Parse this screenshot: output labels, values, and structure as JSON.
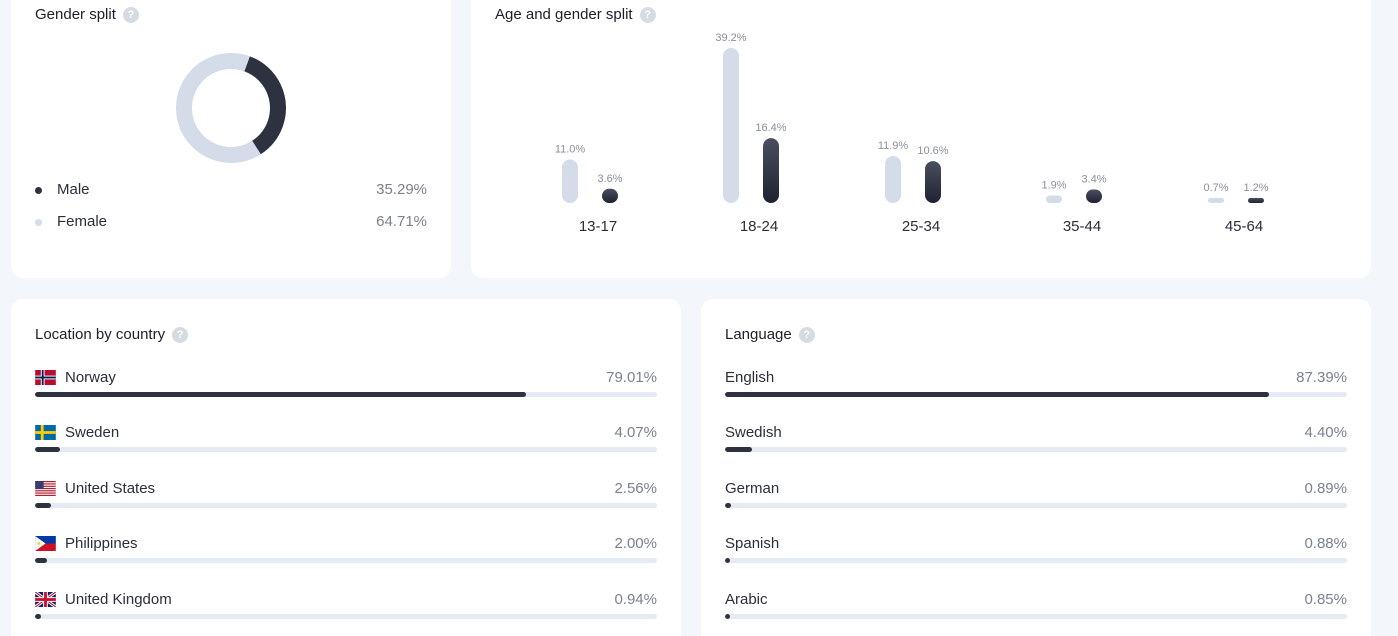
{
  "gender": {
    "title": "Gender split",
    "help": "?",
    "items": [
      {
        "label": "Male",
        "value": "35.29%",
        "color": "#2e3140"
      },
      {
        "label": "Female",
        "value": "64.71%",
        "color": "#d4dbe9"
      }
    ]
  },
  "age": {
    "title": "Age and gender split",
    "help": "?"
  },
  "country": {
    "title": "Location by country",
    "help": "?",
    "items": [
      {
        "label": "Norway",
        "value": "79.01%",
        "flag": "no-flag-icon",
        "fraction": 0.7901
      },
      {
        "label": "Sweden",
        "value": "4.07%",
        "flag": "se-flag-icon",
        "fraction": 0.0407
      },
      {
        "label": "United States",
        "value": "2.56%",
        "flag": "us-flag-icon",
        "fraction": 0.0256
      },
      {
        "label": "Philippines",
        "value": "2.00%",
        "flag": "ph-flag-icon",
        "fraction": 0.02
      },
      {
        "label": "United Kingdom",
        "value": "0.94%",
        "flag": "gb-flag-icon",
        "fraction": 0.0094
      }
    ]
  },
  "language": {
    "title": "Language",
    "help": "?",
    "items": [
      {
        "label": "English",
        "value": "87.39%",
        "fraction": 0.8739
      },
      {
        "label": "Swedish",
        "value": "4.40%",
        "fraction": 0.044
      },
      {
        "label": "German",
        "value": "0.89%",
        "fraction": 0.0089
      },
      {
        "label": "Spanish",
        "value": "0.88%",
        "fraction": 0.0088
      },
      {
        "label": "Arabic",
        "value": "0.85%",
        "fraction": 0.0085
      }
    ]
  },
  "chart_data": [
    {
      "type": "pie",
      "title": "Gender split",
      "categories": [
        "Male",
        "Female"
      ],
      "values": [
        35.29,
        64.71
      ],
      "colors": [
        "#2e3140",
        "#d4dbe9"
      ]
    },
    {
      "type": "bar",
      "title": "Age and gender split",
      "categories": [
        "13-17",
        "18-24",
        "25-34",
        "35-44",
        "45-64"
      ],
      "series": [
        {
          "values": [
            11.0,
            39.2,
            11.9,
            1.9,
            0.7
          ],
          "labels": [
            "11.0%",
            "39.2%",
            "11.9%",
            "1.9%",
            "0.7%"
          ],
          "color": "#d4dbe9"
        },
        {
          "values": [
            3.6,
            16.4,
            10.6,
            3.4,
            1.2
          ],
          "labels": [
            "3.6%",
            "16.4%",
            "10.6%",
            "3.4%",
            "1.2%"
          ],
          "color": "#2e3140"
        }
      ],
      "ylim": [
        0,
        39.2
      ],
      "grid": false
    },
    {
      "type": "bar",
      "title": "Location by country",
      "categories": [
        "Norway",
        "Sweden",
        "United States",
        "Philippines",
        "United Kingdom"
      ],
      "values": [
        79.01,
        4.07,
        2.56,
        2.0,
        0.94
      ]
    },
    {
      "type": "bar",
      "title": "Language",
      "categories": [
        "English",
        "Swedish",
        "German",
        "Spanish",
        "Arabic"
      ],
      "values": [
        87.39,
        4.4,
        0.89,
        0.88,
        0.85
      ]
    }
  ]
}
